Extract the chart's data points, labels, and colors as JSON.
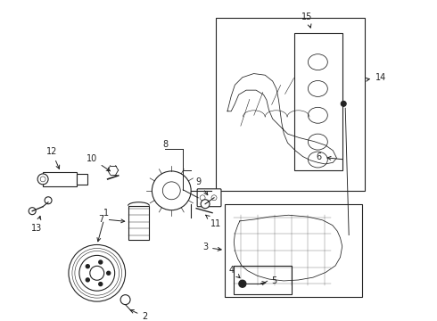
{
  "background_color": "#ffffff",
  "title": "",
  "fig_width": 4.9,
  "fig_height": 3.6,
  "dpi": 100,
  "line_color": "#222222"
}
